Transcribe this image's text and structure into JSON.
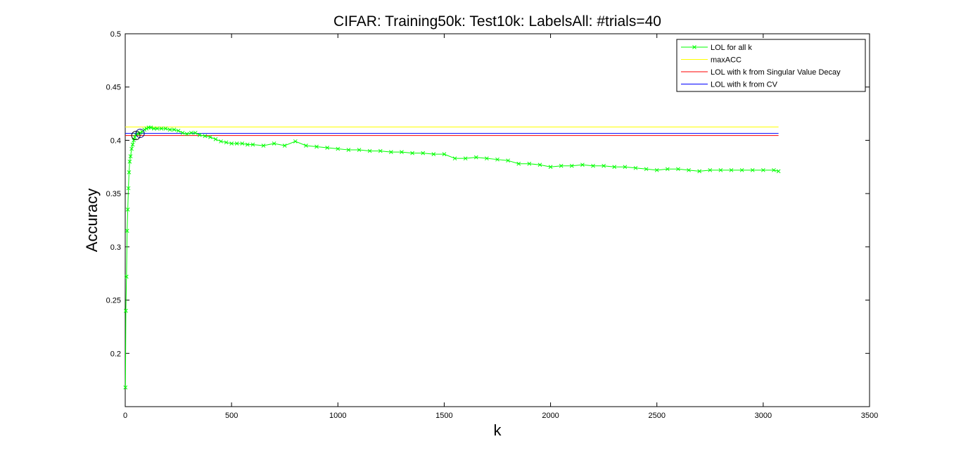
{
  "chart_data": {
    "type": "line",
    "title": "CIFAR: Training50k: Test10k: LabelsAll: #trials=40",
    "xlabel": "k",
    "ylabel": "Accuracy",
    "xlim": [
      0,
      3500
    ],
    "ylim": [
      0.15,
      0.5
    ],
    "xticks": [
      0,
      500,
      1000,
      1500,
      2000,
      2500,
      3000,
      3500
    ],
    "yticks": [
      0.2,
      0.25,
      0.3,
      0.35,
      0.4,
      0.45,
      0.5
    ],
    "xtick_labels": [
      "0",
      "500",
      "1000",
      "1500",
      "2000",
      "2500",
      "3000",
      "3500"
    ],
    "ytick_labels": [
      "0.2",
      "0.25",
      "0.3",
      "0.35",
      "0.4",
      "0.45",
      "0.5"
    ],
    "grid": false,
    "legend_position": "top-right",
    "series": [
      {
        "name": "LOL for all k",
        "color": "#00ff00",
        "marker": "x",
        "x": [
          1,
          3,
          6,
          9,
          12,
          15,
          18,
          21,
          25,
          30,
          35,
          40,
          45,
          50,
          60,
          70,
          80,
          90,
          100,
          110,
          120,
          135,
          150,
          170,
          190,
          210,
          230,
          250,
          270,
          290,
          310,
          330,
          350,
          375,
          400,
          425,
          450,
          475,
          500,
          525,
          550,
          575,
          600,
          650,
          700,
          750,
          800,
          850,
          900,
          950,
          1000,
          1050,
          1100,
          1150,
          1200,
          1250,
          1300,
          1350,
          1400,
          1450,
          1500,
          1550,
          1600,
          1650,
          1700,
          1750,
          1800,
          1850,
          1900,
          1950,
          2000,
          2050,
          2100,
          2150,
          2200,
          2250,
          2300,
          2350,
          2400,
          2450,
          2500,
          2550,
          2600,
          2650,
          2700,
          2750,
          2800,
          2850,
          2900,
          2950,
          3000,
          3050,
          3072
        ],
        "y": [
          0.168,
          0.24,
          0.272,
          0.315,
          0.335,
          0.355,
          0.37,
          0.38,
          0.385,
          0.392,
          0.396,
          0.4,
          0.403,
          0.405,
          0.406,
          0.407,
          0.408,
          0.41,
          0.411,
          0.412,
          0.412,
          0.411,
          0.411,
          0.411,
          0.411,
          0.41,
          0.41,
          0.409,
          0.407,
          0.406,
          0.407,
          0.407,
          0.405,
          0.404,
          0.403,
          0.401,
          0.399,
          0.398,
          0.397,
          0.397,
          0.397,
          0.396,
          0.396,
          0.395,
          0.397,
          0.395,
          0.399,
          0.395,
          0.394,
          0.393,
          0.392,
          0.391,
          0.391,
          0.39,
          0.39,
          0.389,
          0.389,
          0.388,
          0.388,
          0.387,
          0.387,
          0.383,
          0.383,
          0.384,
          0.383,
          0.382,
          0.381,
          0.378,
          0.378,
          0.377,
          0.375,
          0.376,
          0.376,
          0.377,
          0.376,
          0.376,
          0.375,
          0.375,
          0.374,
          0.373,
          0.372,
          0.373,
          0.373,
          0.372,
          0.371,
          0.372,
          0.372,
          0.372,
          0.372,
          0.372,
          0.372,
          0.372,
          0.371
        ]
      },
      {
        "name": "maxACC",
        "color": "#ffff00",
        "x": [
          0,
          3072
        ],
        "y": [
          0.4125,
          0.4125
        ]
      },
      {
        "name": "LOL with k from Singular Value Decay",
        "color": "#ff0000",
        "x": [
          0,
          3072
        ],
        "y": [
          0.4045,
          0.4045
        ]
      },
      {
        "name": "LOL with k from CV",
        "color": "#0000ff",
        "x": [
          0,
          3072
        ],
        "y": [
          0.4065,
          0.4065
        ]
      }
    ],
    "highlight_circles": [
      {
        "x": 50,
        "y": 0.4045,
        "color": "#000000"
      },
      {
        "x": 70,
        "y": 0.4065,
        "color": "#000080"
      }
    ]
  }
}
